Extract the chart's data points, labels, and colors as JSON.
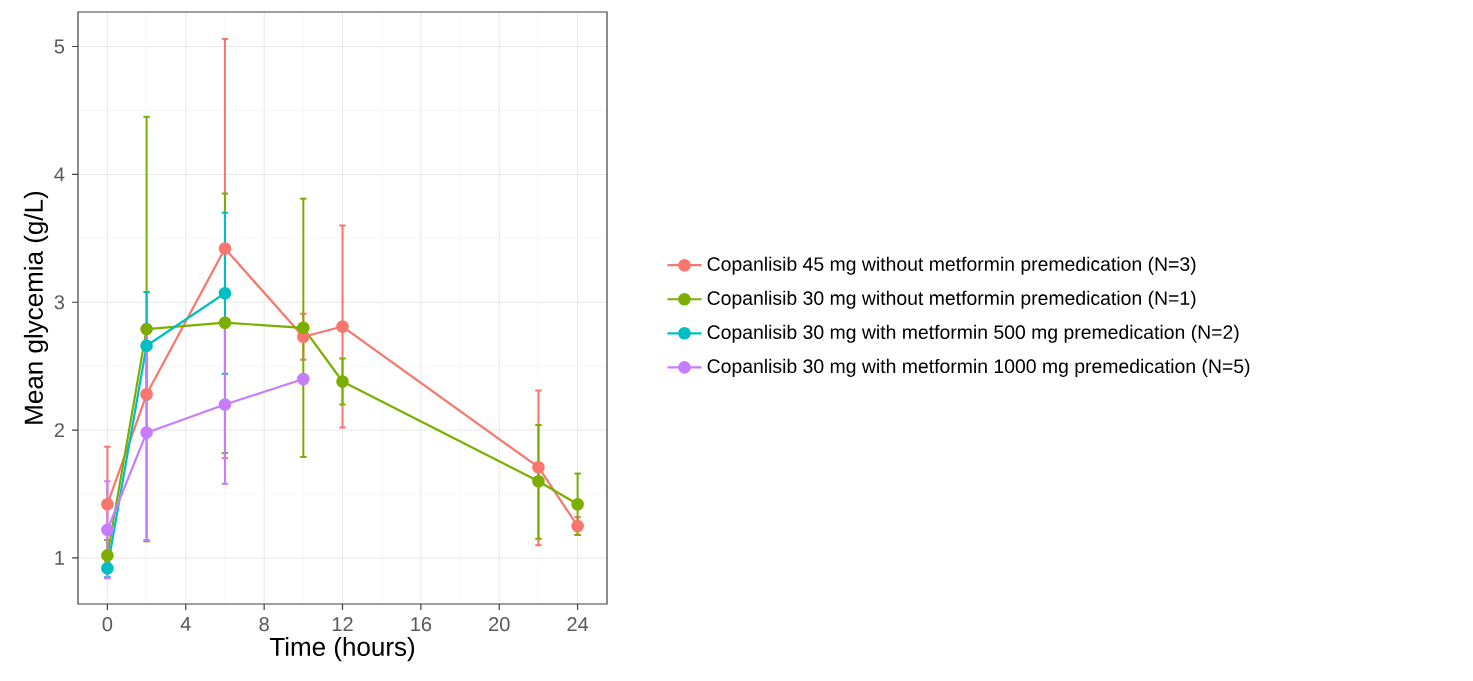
{
  "chart_data": {
    "type": "line",
    "xlabel": "Time (hours)",
    "ylabel": "Mean glycemia (g/L)",
    "xlim": [
      -1.5,
      25.5
    ],
    "ylim": [
      0.64,
      5.27
    ],
    "xticks": [
      0,
      4,
      8,
      12,
      16,
      20,
      24
    ],
    "yticks": [
      1,
      2,
      3,
      4,
      5
    ],
    "grid": true,
    "legend": "right",
    "marker": "circle",
    "line_style": "solid",
    "series": [
      {
        "name": "Copanlisib 45 mg without metformin premedication (N=3)",
        "color": "#f8766d",
        "x": [
          0,
          2,
          6,
          10,
          12,
          22,
          24
        ],
        "values": [
          1.42,
          2.28,
          3.42,
          2.73,
          2.81,
          1.71,
          1.25
        ],
        "errors": [
          [
            0.97,
            1.87
          ],
          null,
          [
            1.78,
            5.06
          ],
          [
            2.55,
            2.91
          ],
          [
            2.02,
            3.6
          ],
          [
            1.1,
            2.31
          ],
          [
            1.18,
            1.32
          ]
        ]
      },
      {
        "name": "Copanlisib 30 mg without metformin premedication (N=1)",
        "color": "#7cae00",
        "x": [
          0,
          2,
          6,
          10,
          12,
          22,
          24
        ],
        "values": [
          1.02,
          2.79,
          2.84,
          2.8,
          2.38,
          1.6,
          1.42
        ],
        "errors": [
          [
            0.9,
            1.14
          ],
          [
            1.13,
            4.45
          ],
          [
            1.82,
            3.85
          ],
          [
            1.79,
            3.81
          ],
          [
            2.2,
            2.56
          ],
          [
            1.15,
            2.04
          ],
          [
            1.18,
            1.66
          ]
        ]
      },
      {
        "name": "Copanlisib 30 mg with metformin 500 mg premedication (N=2)",
        "color": "#00bfc4",
        "x": [
          0,
          2,
          6
        ],
        "values": [
          0.92,
          2.66,
          3.07
        ],
        "errors": [
          [
            0.85,
            0.99
          ],
          [
            2.24,
            3.08
          ],
          [
            2.44,
            3.7
          ]
        ]
      },
      {
        "name": "Copanlisib 30 mg with metformin 1000 mg premedication (N=5)",
        "color": "#c77cff",
        "x": [
          0,
          2,
          6,
          10
        ],
        "values": [
          1.22,
          1.98,
          2.2,
          2.4
        ],
        "errors": [
          [
            0.84,
            1.6
          ],
          [
            1.14,
            2.82
          ],
          [
            1.58,
            2.82
          ],
          null
        ]
      }
    ]
  }
}
